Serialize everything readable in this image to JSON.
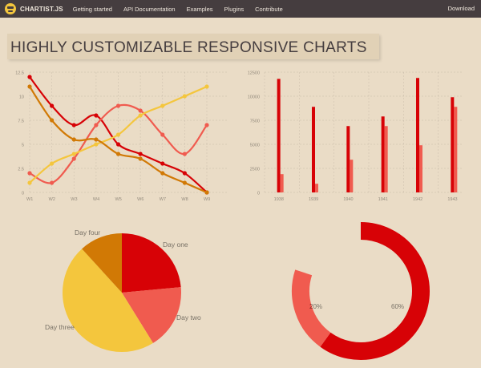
{
  "navbar": {
    "logo_text": "CHARTIST.JS",
    "items": [
      "Getting started",
      "API Documentation",
      "Examples",
      "Plugins",
      "Contribute"
    ],
    "download": "Download"
  },
  "hero": {
    "title": "HIGHLY CUSTOMIZABLE RESPONSIVE CHARTS"
  },
  "colors": {
    "red": "#d70206",
    "salmon": "#f05b4f",
    "yellow": "#f4c63d",
    "orange": "#d17905",
    "nav": "#453d3f",
    "background": "#eadcc6"
  },
  "chart_data": [
    {
      "type": "line",
      "categories": [
        "W1",
        "W2",
        "W3",
        "W4",
        "W5",
        "W6",
        "W7",
        "W8",
        "W9"
      ],
      "series": [
        {
          "values": [
            12,
            9,
            7,
            8,
            5,
            4,
            3,
            2,
            0
          ]
        },
        {
          "values": [
            2,
            1,
            3.5,
            7,
            9,
            8.5,
            6,
            4,
            7
          ]
        },
        {
          "values": [
            1,
            3,
            4,
            5,
            6,
            8,
            9,
            10,
            11
          ]
        },
        {
          "values": [
            11,
            7.5,
            5.5,
            5.5,
            4,
            3.5,
            2,
            1,
            0
          ]
        }
      ],
      "yticks": [
        "0",
        "2.5",
        "5",
        "7.5",
        "10",
        "12.5"
      ],
      "ylim": [
        0,
        12.5
      ],
      "grid": true
    },
    {
      "type": "bar",
      "categories": [
        "1938",
        "1939",
        "1940",
        "1941",
        "1942",
        "1943"
      ],
      "series": [
        {
          "values": [
            11800,
            8900,
            6900,
            7900,
            11900,
            9900
          ]
        },
        {
          "values": [
            1900,
            900,
            3400,
            6900,
            4900,
            8900
          ]
        }
      ],
      "yticks": [
        "0",
        "2500",
        "5000",
        "7500",
        "10000",
        "12500"
      ],
      "ylim": [
        0,
        12500
      ],
      "grid": true
    },
    {
      "type": "pie",
      "labels": [
        "Day one",
        "Day two",
        "Day three",
        "Day four"
      ],
      "values": [
        20,
        15,
        40,
        10
      ]
    },
    {
      "type": "pie",
      "donut": true,
      "labels": [
        "60%",
        "20%"
      ],
      "values": [
        60,
        20
      ],
      "total": 100
    }
  ]
}
